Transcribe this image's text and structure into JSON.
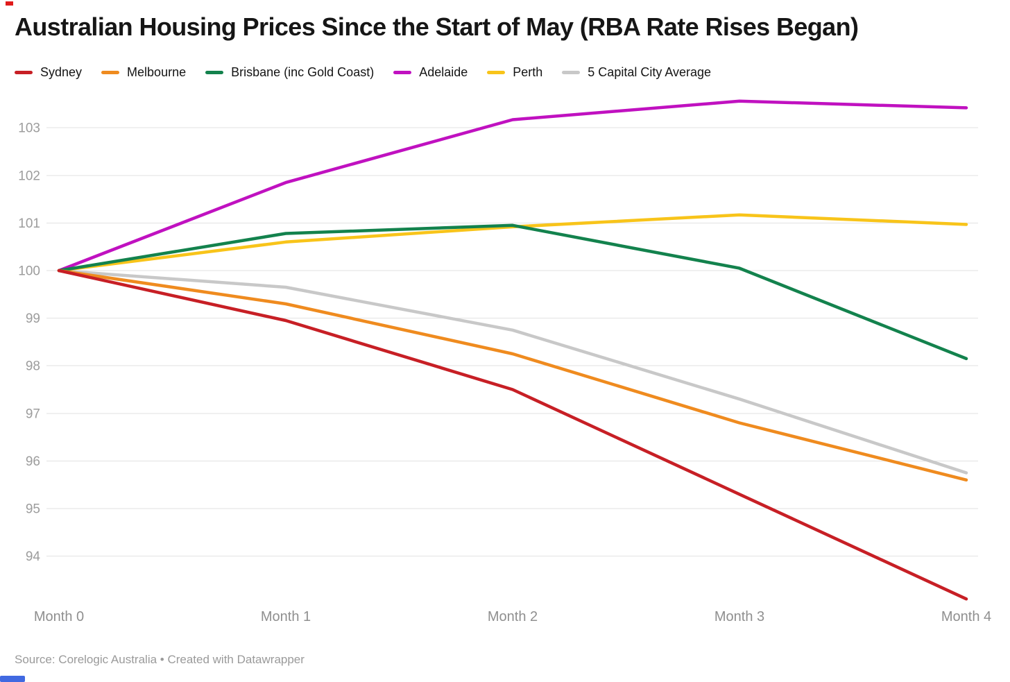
{
  "header": {
    "title": "Australian Housing Prices Since the Start of May (RBA Rate Rises Began)"
  },
  "chart_data": {
    "type": "line",
    "title": "Australian Housing Prices Since the Start of May (RBA Rate Rises Began)",
    "x_categories": [
      "Month 0",
      "Month 1",
      "Month 2",
      "Month 3",
      "Month 4"
    ],
    "y_ticks": [
      94,
      95,
      96,
      97,
      98,
      99,
      100,
      101,
      102,
      103
    ],
    "ylim": [
      92.9,
      103.8
    ],
    "baseline_value": 100,
    "grid": "horizontal-only",
    "legend_position": "top-left",
    "series": [
      {
        "name": "Sydney",
        "color": "#c71f25",
        "values": [
          100,
          98.95,
          97.5,
          95.3,
          93.1
        ]
      },
      {
        "name": "Melbourne",
        "color": "#ef8b1f",
        "values": [
          100,
          99.3,
          98.25,
          96.8,
          95.6
        ]
      },
      {
        "name": "Brisbane (inc Gold Coast)",
        "color": "#13824d",
        "values": [
          100,
          100.78,
          100.95,
          100.05,
          98.15
        ]
      },
      {
        "name": "Adelaide",
        "color": "#c011c0",
        "values": [
          100,
          101.85,
          103.17,
          103.56,
          103.42
        ]
      },
      {
        "name": "Perth",
        "color": "#f8c41a",
        "values": [
          100,
          100.6,
          100.92,
          101.17,
          100.97
        ]
      },
      {
        "name": "5 Capital City Average",
        "color": "#c8c8c8",
        "values": [
          100,
          99.65,
          98.75,
          97.3,
          95.75
        ]
      }
    ]
  },
  "styles": {
    "gridline_color": "#e2e2e2",
    "y_tick_color": "#9c9c9c",
    "x_tick_color": "#8f8f8f"
  },
  "footer": {
    "text": "Source: Corelogic Australia • Created with Datawrapper"
  }
}
